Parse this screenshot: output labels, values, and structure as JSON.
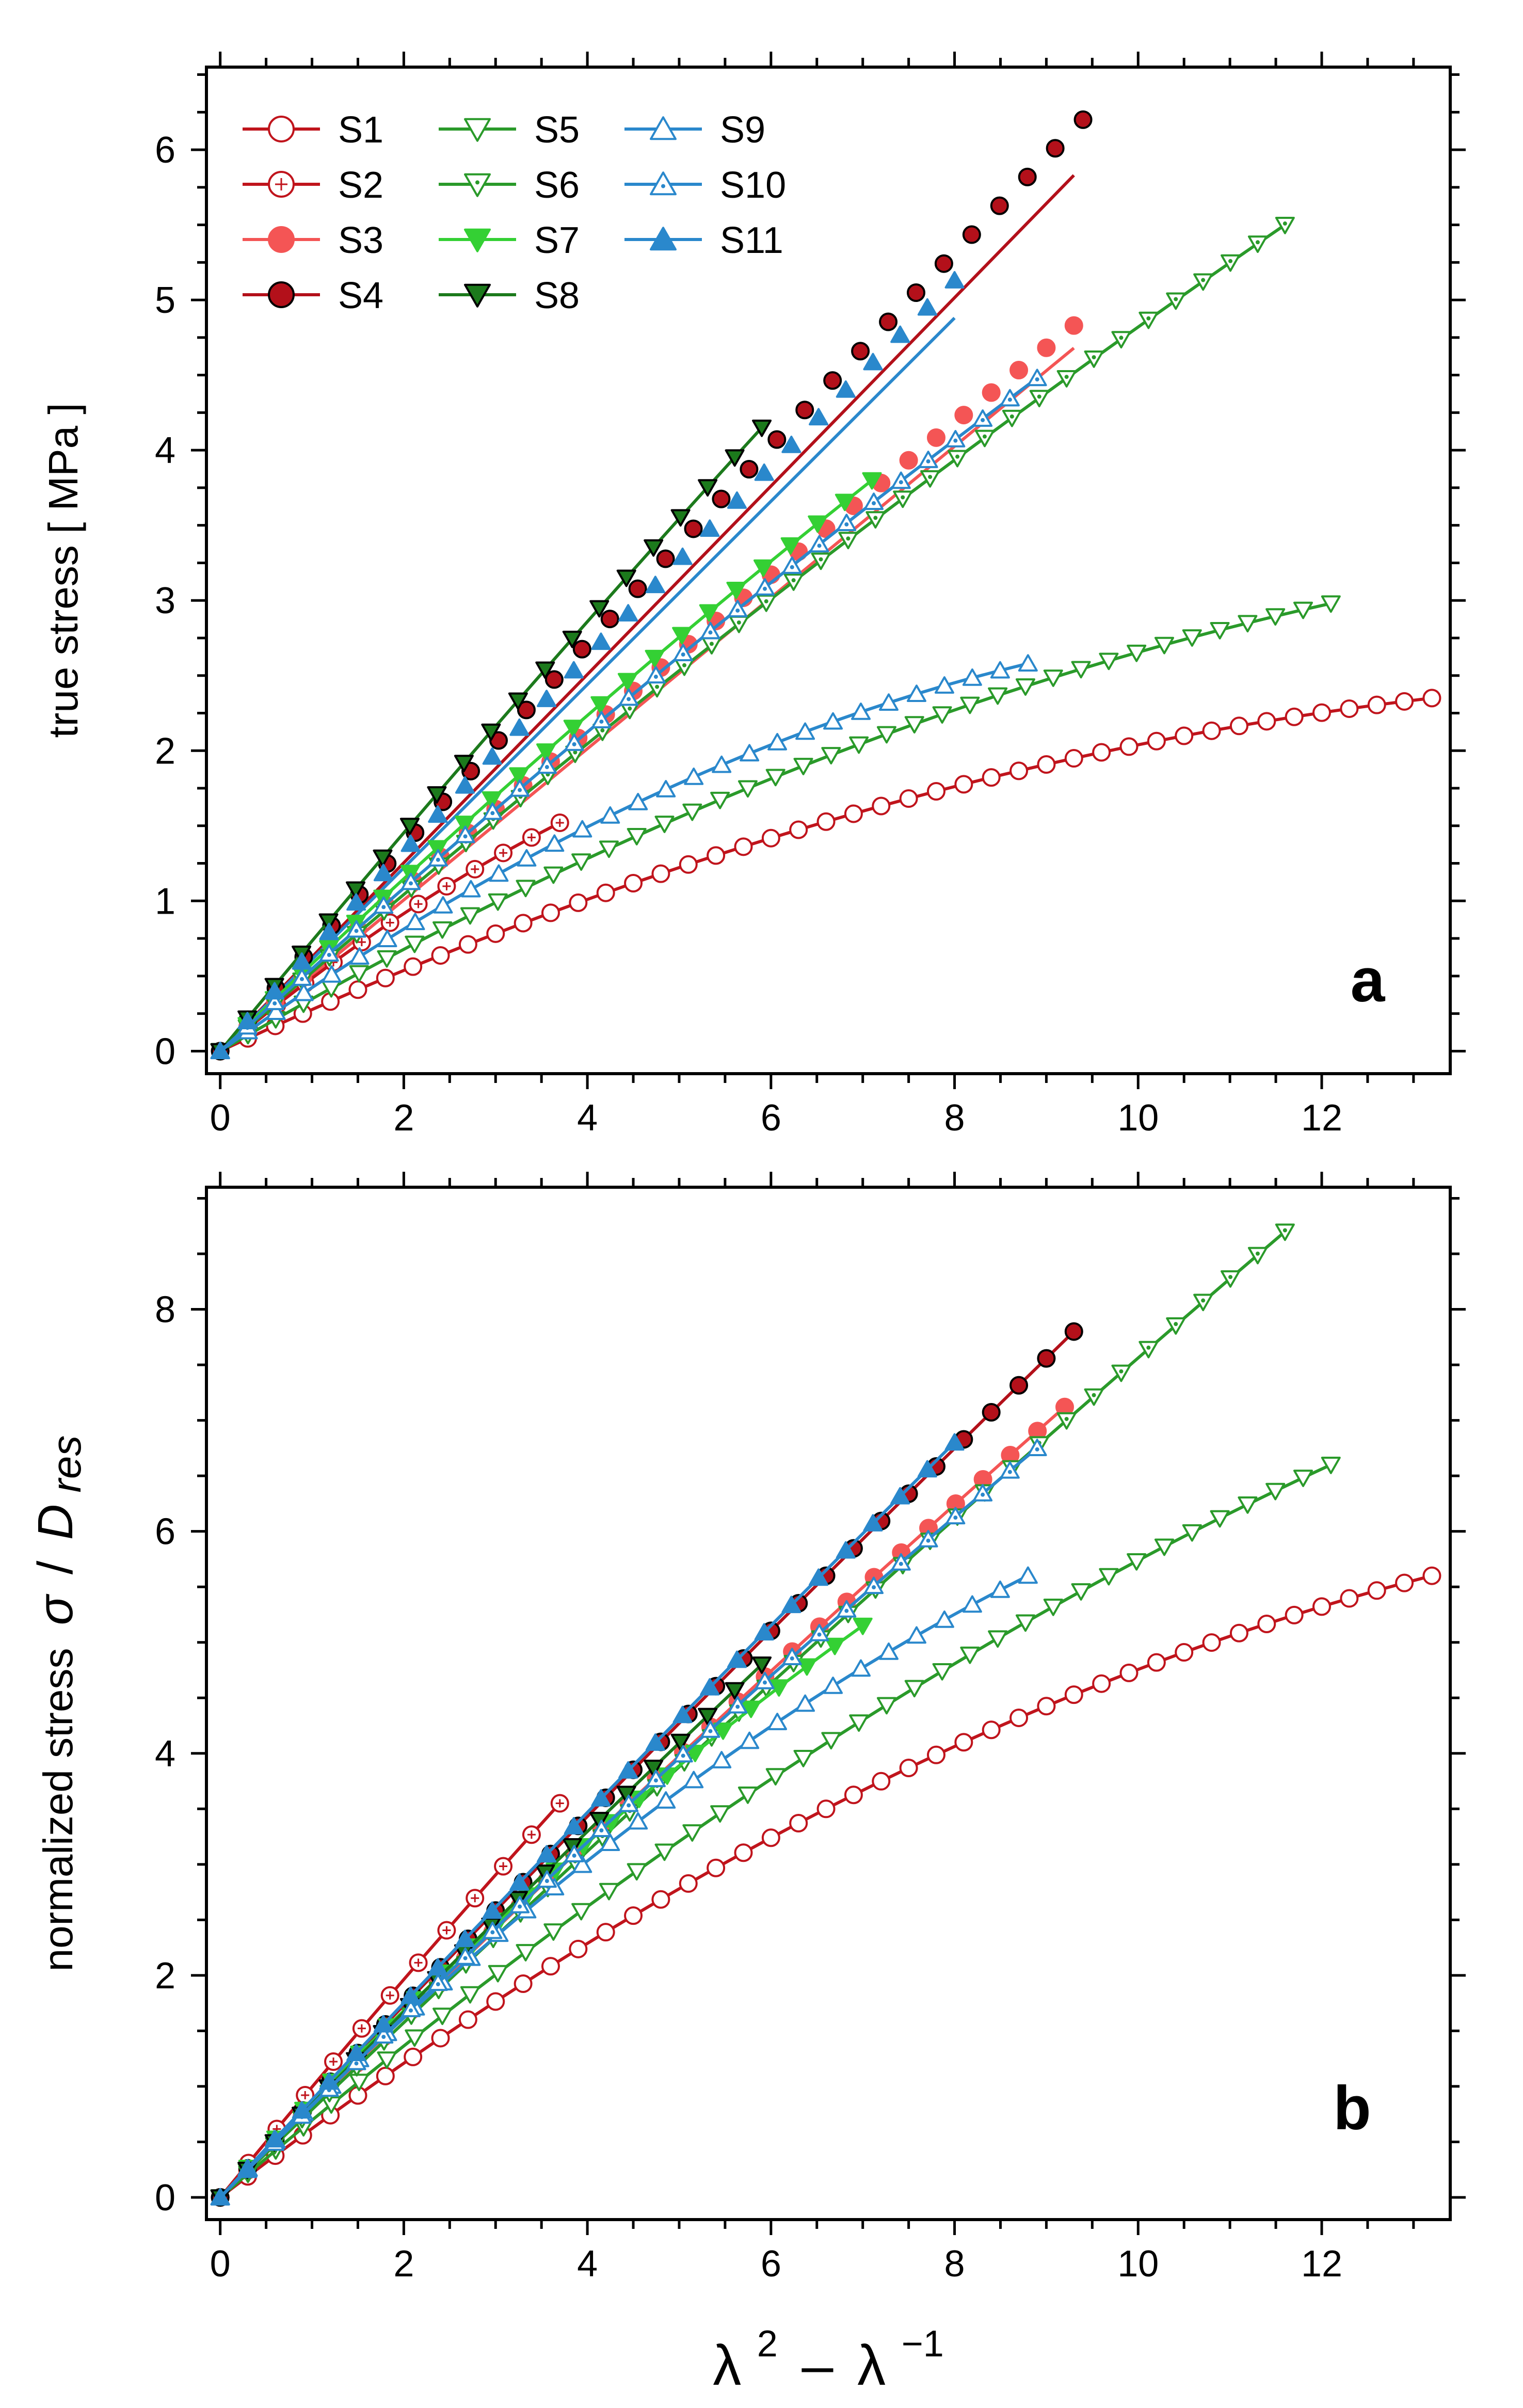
{
  "chart_data": [
    {
      "type": "scatter",
      "panel_label": "a",
      "ylabel": "true stress   [ MPa ]",
      "xlabel": "",
      "xlim": [
        -0.15,
        13.4
      ],
      "ylim": [
        -0.15,
        6.55
      ],
      "xticks": [
        0,
        2,
        4,
        6,
        8,
        10,
        12
      ],
      "yticks": [
        0,
        1,
        2,
        3,
        4,
        5,
        6
      ],
      "series": [
        {
          "name": "S1",
          "end": [
            13.2,
            2.35
          ],
          "k": 0.6,
          "fit": false
        },
        {
          "name": "S2",
          "end": [
            3.7,
            1.52
          ],
          "k": 0.25,
          "fit": false
        },
        {
          "name": "S3",
          "end": [
            9.3,
            4.83
          ],
          "k": 0.05,
          "fit": true,
          "fit_end": [
            9.3,
            4.68
          ]
        },
        {
          "name": "S4",
          "end": [
            9.4,
            6.2
          ],
          "k": 0.05,
          "fit": true,
          "fit_end": [
            9.3,
            5.83
          ]
        },
        {
          "name": "S5",
          "end": [
            12.1,
            2.98
          ],
          "k": 0.45,
          "fit": false
        },
        {
          "name": "S6",
          "end": [
            11.6,
            5.5
          ],
          "k": 0.12,
          "fit": false
        },
        {
          "name": "S7",
          "end": [
            7.1,
            3.8
          ],
          "k": 0.1,
          "fit": false
        },
        {
          "name": "S8",
          "end": [
            5.9,
            4.15
          ],
          "k": 0.05,
          "fit": false
        },
        {
          "name": "S9",
          "end": [
            8.8,
            2.58
          ],
          "k": 0.5,
          "fit": false
        },
        {
          "name": "S10",
          "end": [
            8.9,
            4.48
          ],
          "k": 0.1,
          "fit": false
        },
        {
          "name": "S11",
          "end": [
            8.0,
            5.13
          ],
          "k": 0.05,
          "fit": true,
          "fit_end": [
            8.0,
            4.88
          ]
        }
      ]
    },
    {
      "type": "scatter",
      "panel_label": "b",
      "ylabel_prefix": "normalized stress",
      "ylabel_sigma": "σ",
      "ylabel_slash": "/",
      "ylabel_D": "D",
      "ylabel_sub": "res",
      "xlabel_lambda": "λ",
      "xlabel_exp1": "2",
      "xlabel_minus": "–",
      "xlabel_exp2": "−1",
      "xlim": [
        -0.15,
        13.4
      ],
      "ylim": [
        -0.2,
        9.1
      ],
      "xticks": [
        0,
        2,
        4,
        6,
        8,
        10,
        12
      ],
      "yticks": [
        0,
        2,
        4,
        6,
        8
      ],
      "series": [
        {
          "name": "S1",
          "end": [
            13.2,
            5.6
          ],
          "k": 0.5
        },
        {
          "name": "S2",
          "end": [
            3.7,
            3.55
          ],
          "k": 0.05
        },
        {
          "name": "S3",
          "end": [
            9.2,
            7.12
          ],
          "k": 0.06
        },
        {
          "name": "S4",
          "end": [
            9.3,
            7.8
          ],
          "k": 0.04
        },
        {
          "name": "S5",
          "end": [
            12.1,
            6.6
          ],
          "k": 0.3
        },
        {
          "name": "S6",
          "end": [
            11.6,
            8.7
          ],
          "k": 0.06
        },
        {
          "name": "S7",
          "end": [
            7.0,
            5.15
          ],
          "k": 0.2
        },
        {
          "name": "S8",
          "end": [
            5.9,
            4.8
          ],
          "k": 0.04
        },
        {
          "name": "S9",
          "end": [
            8.8,
            5.6
          ],
          "k": 0.35
        },
        {
          "name": "S10",
          "end": [
            8.9,
            6.75
          ],
          "k": 0.1
        },
        {
          "name": "S11",
          "end": [
            8.0,
            6.8
          ],
          "k": 0.04
        }
      ]
    }
  ],
  "legend": [
    {
      "name": "S1",
      "label": "S1",
      "line": "#c0141c",
      "marker": "circle",
      "fill": "#ffffff",
      "stroke": "#c0141c",
      "inner": "none"
    },
    {
      "name": "S2",
      "label": "S2",
      "line": "#c0141c",
      "marker": "circle",
      "fill": "#ffffff",
      "stroke": "#c0141c",
      "inner": "plus"
    },
    {
      "name": "S3",
      "label": "S3",
      "line": "#f45555",
      "marker": "circle",
      "fill": "#f45555",
      "stroke": "#f45555",
      "inner": "none"
    },
    {
      "name": "S4",
      "label": "S4",
      "line": "#b3101a",
      "marker": "circle",
      "fill": "#b3101a",
      "stroke": "#000000",
      "inner": "none"
    },
    {
      "name": "S5",
      "label": "S5",
      "line": "#2a9a2a",
      "marker": "tri-down",
      "fill": "#ffffff",
      "stroke": "#2a9a2a",
      "inner": "none"
    },
    {
      "name": "S6",
      "label": "S6",
      "line": "#2a9a2a",
      "marker": "tri-down",
      "fill": "#ffffff",
      "stroke": "#2a9a2a",
      "inner": "dot"
    },
    {
      "name": "S7",
      "label": "S7",
      "line": "#34d034",
      "marker": "tri-down",
      "fill": "#34d034",
      "stroke": "#34d034",
      "inner": "none"
    },
    {
      "name": "S8",
      "label": "S8",
      "line": "#1c7a1c",
      "marker": "tri-down",
      "fill": "#1c7a1c",
      "stroke": "#000000",
      "inner": "none"
    },
    {
      "name": "S9",
      "label": "S9",
      "line": "#2a88cc",
      "marker": "tri-up",
      "fill": "#ffffff",
      "stroke": "#2a88cc",
      "inner": "none"
    },
    {
      "name": "S10",
      "label": "S10",
      "line": "#2a88cc",
      "marker": "tri-up",
      "fill": "#ffffff",
      "stroke": "#2a88cc",
      "inner": "dot"
    },
    {
      "name": "S11",
      "label": "S11",
      "line": "#2a88cc",
      "marker": "tri-up",
      "fill": "#2a88cc",
      "stroke": "#2a88cc",
      "inner": "none"
    }
  ]
}
